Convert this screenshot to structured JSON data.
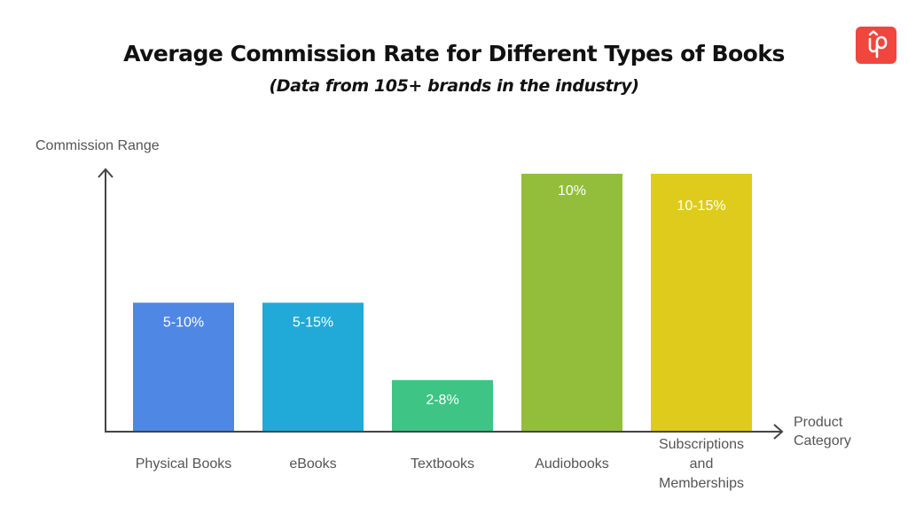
{
  "chart_data": {
    "type": "bar",
    "title": "Average Commission Rate for Different Types of Books",
    "subtitle": "(Data from 105+ brands in the industry)",
    "xlabel": "Product Category",
    "ylabel": "Commission Range",
    "categories": [
      [
        "Physical Books"
      ],
      [
        "eBooks"
      ],
      [
        "Textbooks"
      ],
      [
        "Audiobooks"
      ],
      [
        "Subscriptions",
        "and",
        "Memberships"
      ]
    ],
    "values": [
      5,
      5,
      2,
      10,
      10
    ],
    "data_labels": [
      "5-10%",
      "5-15%",
      "2-8%",
      "10%",
      "10-15%"
    ],
    "colors": [
      "#4f87e5",
      "#21a9d8",
      "#3ec485",
      "#93be3c",
      "#dfcb1b"
    ],
    "ylim": [
      0,
      10
    ],
    "grid": false,
    "legend": "none"
  },
  "logo": {
    "icon": "up-logo-icon",
    "color": "#f0463e"
  }
}
